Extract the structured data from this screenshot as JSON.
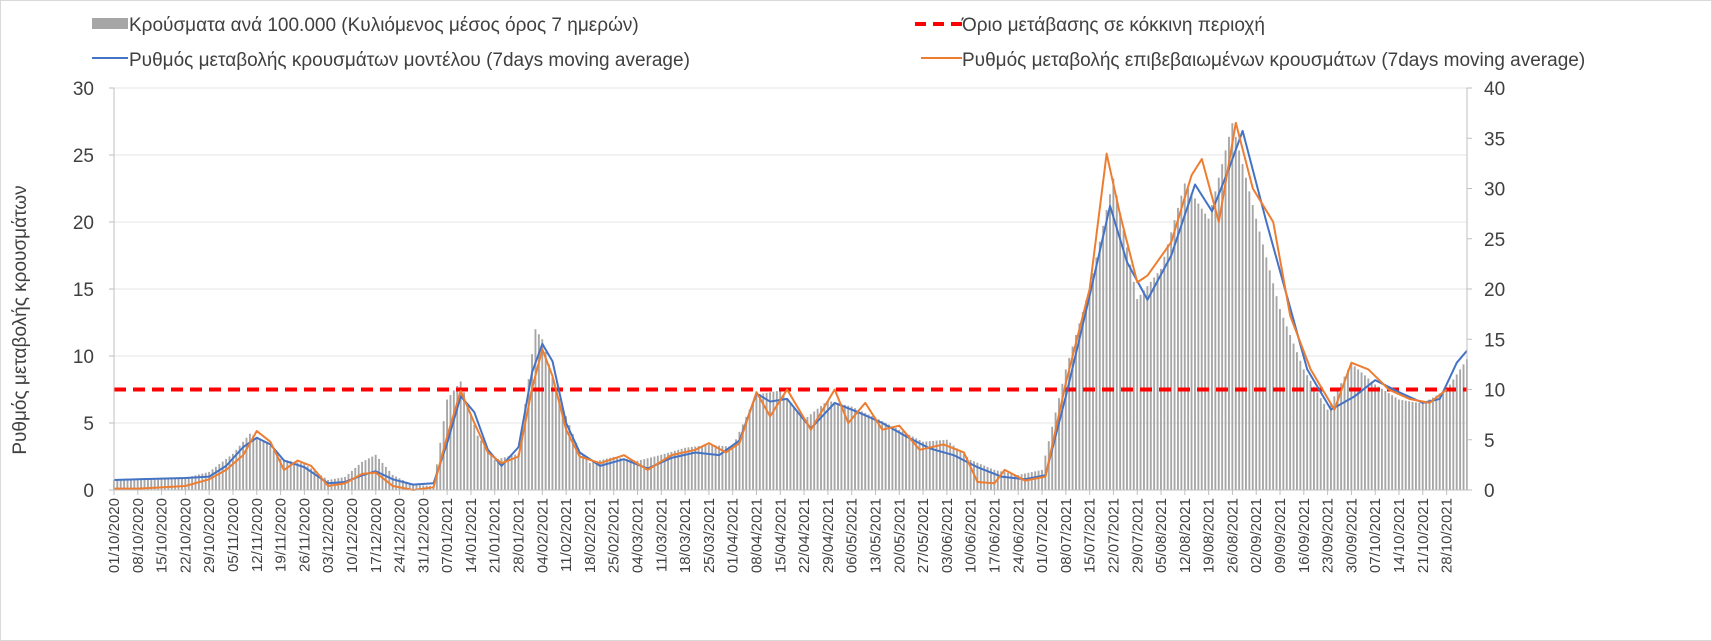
{
  "chart_data": {
    "type": "bar+line",
    "legend": [
      {
        "name": "Κρούσματα ανά 100.000 (Κυλιόμενος μέσος όρος 7 ημερών)",
        "kind": "bar",
        "color": "#a6a6a6"
      },
      {
        "name": "Όριο μετάβασης σε κόκκινη περιοχή",
        "kind": "dashed-line",
        "color": "#ff0000"
      },
      {
        "name": "Ρυθμός μεταβολής κρουσμάτων μοντέλου (7days moving average)",
        "kind": "line",
        "color": "#4472c4"
      },
      {
        "name": "Ρυθμός μεταβολής επιβεβαιωμένων κρουσμάτων (7days moving average)",
        "kind": "line",
        "color": "#ed7d31"
      }
    ],
    "ylabel": "Ρυθμός μεταβολής κρουσμάτων",
    "y_left": {
      "range": [
        0,
        30
      ],
      "ticks": [
        "0",
        "5",
        "10",
        "15",
        "20",
        "25",
        "30"
      ]
    },
    "y_right": {
      "range": [
        0,
        40
      ],
      "ticks": [
        "0",
        "5",
        "10",
        "15",
        "20",
        "25",
        "30",
        "35",
        "40"
      ]
    },
    "x_range": [
      "2020-10-01",
      "2021-11-03"
    ],
    "x_tick_labels": [
      "01/10/2020",
      "08/10/2020",
      "15/10/2020",
      "22/10/2020",
      "29/10/2020",
      "05/11/2020",
      "12/11/2020",
      "19/11/2020",
      "26/11/2020",
      "03/12/2020",
      "10/12/2020",
      "17/12/2020",
      "24/12/2020",
      "31/12/2020",
      "07/01/2021",
      "14/01/2021",
      "21/01/2021",
      "28/01/2021",
      "04/02/2021",
      "11/02/2021",
      "18/02/2021",
      "25/02/2021",
      "04/03/2021",
      "11/03/2021",
      "18/03/2021",
      "25/03/2021",
      "01/04/2021",
      "08/04/2021",
      "15/04/2021",
      "22/04/2021",
      "29/04/2021",
      "06/05/2021",
      "13/05/2021",
      "20/05/2021",
      "27/05/2021",
      "03/06/2021",
      "10/06/2021",
      "17/06/2021",
      "24/06/2021",
      "01/07/2021",
      "08/07/2021",
      "15/07/2021",
      "22/07/2021",
      "29/07/2021",
      "05/08/2021",
      "12/08/2021",
      "19/08/2021",
      "26/08/2021",
      "02/09/2021",
      "09/09/2021",
      "16/09/2021",
      "23/09/2021",
      "30/09/2021",
      "07/10/2021",
      "14/10/2021",
      "21/10/2021",
      "28/10/2021"
    ],
    "threshold": {
      "name": "Όριο μετάβασης σε κόκκινη περιοχή",
      "value_right_axis": 10
    },
    "bars_right_axis": {
      "name": "Κρούσματα ανά 100.000 (Κυλιόμενος μέσος όρος 7 ημερών)",
      "points": [
        [
          "2020-10-01",
          1.0
        ],
        [
          "2020-10-08",
          1.1
        ],
        [
          "2020-10-15",
          1.1
        ],
        [
          "2020-10-22",
          1.2
        ],
        [
          "2020-10-29",
          1.8
        ],
        [
          "2020-11-05",
          3.6
        ],
        [
          "2020-11-10",
          5.6
        ],
        [
          "2020-11-15",
          4.8
        ],
        [
          "2020-11-19",
          3.1
        ],
        [
          "2020-11-26",
          2.6
        ],
        [
          "2020-12-03",
          1.0
        ],
        [
          "2020-12-08",
          1.3
        ],
        [
          "2020-12-13",
          2.8
        ],
        [
          "2020-12-17",
          3.5
        ],
        [
          "2020-12-22",
          1.5
        ],
        [
          "2020-12-28",
          0.5
        ],
        [
          "2021-01-03",
          0.4
        ],
        [
          "2021-01-07",
          9.0
        ],
        [
          "2021-01-11",
          10.8
        ],
        [
          "2021-01-16",
          5.4
        ],
        [
          "2021-01-21",
          3.0
        ],
        [
          "2021-01-28",
          3.6
        ],
        [
          "2021-02-02",
          16.0
        ],
        [
          "2021-02-04",
          15.0
        ],
        [
          "2021-02-08",
          10.0
        ],
        [
          "2021-02-15",
          3.8
        ],
        [
          "2021-02-18",
          2.7
        ],
        [
          "2021-02-25",
          3.3
        ],
        [
          "2021-03-04",
          2.9
        ],
        [
          "2021-03-11",
          3.5
        ],
        [
          "2021-03-18",
          4.2
        ],
        [
          "2021-03-25",
          4.5
        ],
        [
          "2021-04-01",
          4.3
        ],
        [
          "2021-04-08",
          9.5
        ],
        [
          "2021-04-15",
          9.9
        ],
        [
          "2021-04-22",
          7.0
        ],
        [
          "2021-04-29",
          8.9
        ],
        [
          "2021-05-06",
          8.3
        ],
        [
          "2021-05-13",
          7.2
        ],
        [
          "2021-05-20",
          6.0
        ],
        [
          "2021-05-27",
          4.8
        ],
        [
          "2021-06-03",
          5.0
        ],
        [
          "2021-06-10",
          3.0
        ],
        [
          "2021-06-17",
          2.0
        ],
        [
          "2021-06-24",
          1.5
        ],
        [
          "2021-07-01",
          2.0
        ],
        [
          "2021-07-08",
          12.0
        ],
        [
          "2021-07-15",
          20.0
        ],
        [
          "2021-07-22",
          31.0
        ],
        [
          "2021-07-29",
          19.0
        ],
        [
          "2021-08-05",
          22.0
        ],
        [
          "2021-08-12",
          30.5
        ],
        [
          "2021-08-19",
          27.0
        ],
        [
          "2021-08-26",
          36.5
        ],
        [
          "2021-09-02",
          27.0
        ],
        [
          "2021-09-09",
          18.0
        ],
        [
          "2021-09-16",
          12.0
        ],
        [
          "2021-09-23",
          8.0
        ],
        [
          "2021-09-30",
          12.6
        ],
        [
          "2021-10-07",
          10.5
        ],
        [
          "2021-10-14",
          9.0
        ],
        [
          "2021-10-21",
          8.6
        ],
        [
          "2021-10-28",
          10.0
        ],
        [
          "2021-11-03",
          13.0
        ]
      ]
    },
    "series": [
      {
        "name": "Ρυθμός μεταβολής κρουσμάτων μοντέλου (7days moving average)",
        "axis": "left",
        "points": [
          [
            "2020-10-01",
            0.75
          ],
          [
            "2020-10-08",
            0.8
          ],
          [
            "2020-10-15",
            0.85
          ],
          [
            "2020-10-22",
            0.9
          ],
          [
            "2020-10-29",
            1.0
          ],
          [
            "2020-11-03",
            1.8
          ],
          [
            "2020-11-08",
            3.2
          ],
          [
            "2020-11-12",
            3.9
          ],
          [
            "2020-11-16",
            3.4
          ],
          [
            "2020-11-20",
            2.2
          ],
          [
            "2020-11-26",
            1.7
          ],
          [
            "2020-12-03",
            0.5
          ],
          [
            "2020-12-08",
            0.6
          ],
          [
            "2020-12-13",
            1.1
          ],
          [
            "2020-12-17",
            1.4
          ],
          [
            "2020-12-22",
            0.8
          ],
          [
            "2020-12-28",
            0.4
          ],
          [
            "2021-01-03",
            0.5
          ],
          [
            "2021-01-07",
            3.5
          ],
          [
            "2021-01-11",
            7.0
          ],
          [
            "2021-01-15",
            5.8
          ],
          [
            "2021-01-19",
            3.0
          ],
          [
            "2021-01-23",
            1.8
          ],
          [
            "2021-01-28",
            3.2
          ],
          [
            "2021-02-01",
            8.8
          ],
          [
            "2021-02-04",
            10.9
          ],
          [
            "2021-02-07",
            9.6
          ],
          [
            "2021-02-11",
            5.0
          ],
          [
            "2021-02-15",
            2.8
          ],
          [
            "2021-02-21",
            1.8
          ],
          [
            "2021-02-28",
            2.3
          ],
          [
            "2021-03-07",
            1.6
          ],
          [
            "2021-03-14",
            2.4
          ],
          [
            "2021-03-21",
            2.8
          ],
          [
            "2021-03-28",
            2.6
          ],
          [
            "2021-04-03",
            3.7
          ],
          [
            "2021-04-08",
            7.2
          ],
          [
            "2021-04-12",
            6.6
          ],
          [
            "2021-04-17",
            6.8
          ],
          [
            "2021-04-24",
            4.6
          ],
          [
            "2021-05-01",
            6.5
          ],
          [
            "2021-05-08",
            5.8
          ],
          [
            "2021-05-15",
            5.0
          ],
          [
            "2021-05-22",
            4.0
          ],
          [
            "2021-05-29",
            3.1
          ],
          [
            "2021-06-05",
            2.6
          ],
          [
            "2021-06-12",
            1.7
          ],
          [
            "2021-06-19",
            1.0
          ],
          [
            "2021-06-26",
            0.8
          ],
          [
            "2021-07-02",
            1.1
          ],
          [
            "2021-07-08",
            7.0
          ],
          [
            "2021-07-15",
            14.5
          ],
          [
            "2021-07-21",
            21.2
          ],
          [
            "2021-07-26",
            17.0
          ],
          [
            "2021-08-01",
            14.2
          ],
          [
            "2021-08-08",
            17.5
          ],
          [
            "2021-08-15",
            22.8
          ],
          [
            "2021-08-20",
            20.8
          ],
          [
            "2021-08-25",
            24.0
          ],
          [
            "2021-08-29",
            26.8
          ],
          [
            "2021-09-05",
            20.0
          ],
          [
            "2021-09-11",
            14.5
          ],
          [
            "2021-09-17",
            9.0
          ],
          [
            "2021-09-24",
            6.0
          ],
          [
            "2021-10-01",
            7.0
          ],
          [
            "2021-10-07",
            8.2
          ],
          [
            "2021-10-14",
            7.3
          ],
          [
            "2021-10-21",
            6.5
          ],
          [
            "2021-10-26",
            6.8
          ],
          [
            "2021-10-31",
            9.5
          ],
          [
            "2021-11-03",
            10.4
          ]
        ]
      },
      {
        "name": "Ρυθμός μεταβολής επιβεβαιωμένων κρουσμάτων (7days moving average)",
        "axis": "left",
        "points": [
          [
            "2020-10-01",
            0.1
          ],
          [
            "2020-10-08",
            0.1
          ],
          [
            "2020-10-15",
            0.2
          ],
          [
            "2020-10-22",
            0.3
          ],
          [
            "2020-10-29",
            0.8
          ],
          [
            "2020-11-03",
            1.5
          ],
          [
            "2020-11-08",
            2.6
          ],
          [
            "2020-11-12",
            4.4
          ],
          [
            "2020-11-16",
            3.6
          ],
          [
            "2020-11-20",
            1.5
          ],
          [
            "2020-11-24",
            2.2
          ],
          [
            "2020-11-28",
            1.8
          ],
          [
            "2020-12-03",
            0.3
          ],
          [
            "2020-12-08",
            0.5
          ],
          [
            "2020-12-13",
            1.2
          ],
          [
            "2020-12-17",
            1.3
          ],
          [
            "2020-12-22",
            0.3
          ],
          [
            "2020-12-28",
            0.0
          ],
          [
            "2021-01-03",
            0.2
          ],
          [
            "2021-01-07",
            4.0
          ],
          [
            "2021-01-11",
            7.4
          ],
          [
            "2021-01-15",
            5.0
          ],
          [
            "2021-01-19",
            2.8
          ],
          [
            "2021-01-23",
            2.0
          ],
          [
            "2021-01-28",
            2.5
          ],
          [
            "2021-02-01",
            7.6
          ],
          [
            "2021-02-04",
            10.5
          ],
          [
            "2021-02-07",
            8.5
          ],
          [
            "2021-02-11",
            4.5
          ],
          [
            "2021-02-15",
            2.5
          ],
          [
            "2021-02-21",
            2.0
          ],
          [
            "2021-02-28",
            2.6
          ],
          [
            "2021-03-07",
            1.5
          ],
          [
            "2021-03-14",
            2.6
          ],
          [
            "2021-03-21",
            3.0
          ],
          [
            "2021-03-25",
            3.5
          ],
          [
            "2021-03-30",
            2.8
          ],
          [
            "2021-04-03",
            3.5
          ],
          [
            "2021-04-08",
            7.3
          ],
          [
            "2021-04-12",
            5.5
          ],
          [
            "2021-04-17",
            7.5
          ],
          [
            "2021-04-24",
            4.5
          ],
          [
            "2021-05-01",
            7.5
          ],
          [
            "2021-05-05",
            5.0
          ],
          [
            "2021-05-10",
            6.5
          ],
          [
            "2021-05-15",
            4.5
          ],
          [
            "2021-05-20",
            4.8
          ],
          [
            "2021-05-26",
            3.0
          ],
          [
            "2021-06-02",
            3.4
          ],
          [
            "2021-06-08",
            2.8
          ],
          [
            "2021-06-12",
            0.6
          ],
          [
            "2021-06-17",
            0.5
          ],
          [
            "2021-06-20",
            1.5
          ],
          [
            "2021-06-26",
            0.7
          ],
          [
            "2021-07-02",
            1.0
          ],
          [
            "2021-07-08",
            8.0
          ],
          [
            "2021-07-15",
            15.0
          ],
          [
            "2021-07-20",
            25.1
          ],
          [
            "2021-07-24",
            20.5
          ],
          [
            "2021-07-29",
            15.5
          ],
          [
            "2021-08-01",
            16.0
          ],
          [
            "2021-08-08",
            18.5
          ],
          [
            "2021-08-14",
            23.5
          ],
          [
            "2021-08-17",
            24.7
          ],
          [
            "2021-08-22",
            20.0
          ],
          [
            "2021-08-27",
            27.4
          ],
          [
            "2021-09-01",
            22.5
          ],
          [
            "2021-09-07",
            20.0
          ],
          [
            "2021-09-12",
            13.0
          ],
          [
            "2021-09-18",
            9.0
          ],
          [
            "2021-09-25",
            6.0
          ],
          [
            "2021-09-30",
            9.5
          ],
          [
            "2021-10-05",
            9.0
          ],
          [
            "2021-10-11",
            7.5
          ],
          [
            "2021-10-17",
            6.8
          ],
          [
            "2021-10-23",
            6.5
          ],
          [
            "2021-10-28",
            7.5
          ]
        ]
      }
    ]
  }
}
